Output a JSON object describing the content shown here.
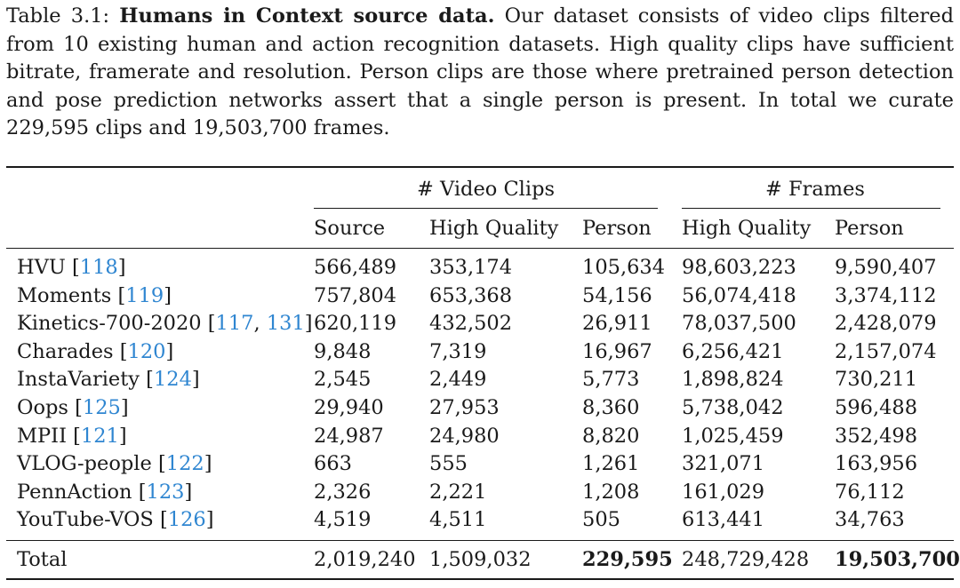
{
  "caption": {
    "label": "Table 3.1:",
    "title": "Humans in Context source data.",
    "body": "Our dataset consists of video clips filtered from 10 existing human and action recognition datasets. High quality clips have sufficient bitrate, framerate and resolution. Person clips are those where pretrained person detection and pose prediction networks assert that a single person is present. In total we curate 229,595 clips and 19,503,700 frames."
  },
  "table": {
    "group_headers": [
      "# Video Clips",
      "# Frames"
    ],
    "columns": [
      "Source",
      "High Quality",
      "Person",
      "High Quality",
      "Person"
    ],
    "rows": [
      {
        "name": "HVU",
        "refs": [
          "118"
        ],
        "values": [
          "566,489",
          "353,174",
          "105,634",
          "98,603,223",
          "9,590,407"
        ]
      },
      {
        "name": "Moments",
        "refs": [
          "119"
        ],
        "values": [
          "757,804",
          "653,368",
          "54,156",
          "56,074,418",
          "3,374,112"
        ]
      },
      {
        "name": "Kinetics-700-2020",
        "refs": [
          "117",
          "131"
        ],
        "values": [
          "620,119",
          "432,502",
          "26,911",
          "78,037,500",
          "2,428,079"
        ]
      },
      {
        "name": "Charades",
        "refs": [
          "120"
        ],
        "values": [
          "9,848",
          "7,319",
          "16,967",
          "6,256,421",
          "2,157,074"
        ]
      },
      {
        "name": "InstaVariety",
        "refs": [
          "124"
        ],
        "values": [
          "2,545",
          "2,449",
          "5,773",
          "1,898,824",
          "730,211"
        ]
      },
      {
        "name": "Oops",
        "refs": [
          "125"
        ],
        "values": [
          "29,940",
          "27,953",
          "8,360",
          "5,738,042",
          "596,488"
        ]
      },
      {
        "name": "MPII",
        "refs": [
          "121"
        ],
        "values": [
          "24,987",
          "24,980",
          "8,820",
          "1,025,459",
          "352,498"
        ]
      },
      {
        "name": "VLOG-people",
        "refs": [
          "122"
        ],
        "values": [
          "663",
          "555",
          "1,261",
          "321,071",
          "163,956"
        ]
      },
      {
        "name": "PennAction",
        "refs": [
          "123"
        ],
        "values": [
          "2,326",
          "2,221",
          "1,208",
          "161,029",
          "76,112"
        ]
      },
      {
        "name": "YouTube-VOS",
        "refs": [
          "126"
        ],
        "values": [
          "4,519",
          "4,511",
          "505",
          "613,441",
          "34,763"
        ]
      }
    ],
    "total": {
      "name": "Total",
      "values": [
        "2,019,240",
        "1,509,032",
        "229,595",
        "248,729,428",
        "19,503,700"
      ],
      "bold": [
        false,
        false,
        true,
        false,
        true
      ]
    }
  }
}
